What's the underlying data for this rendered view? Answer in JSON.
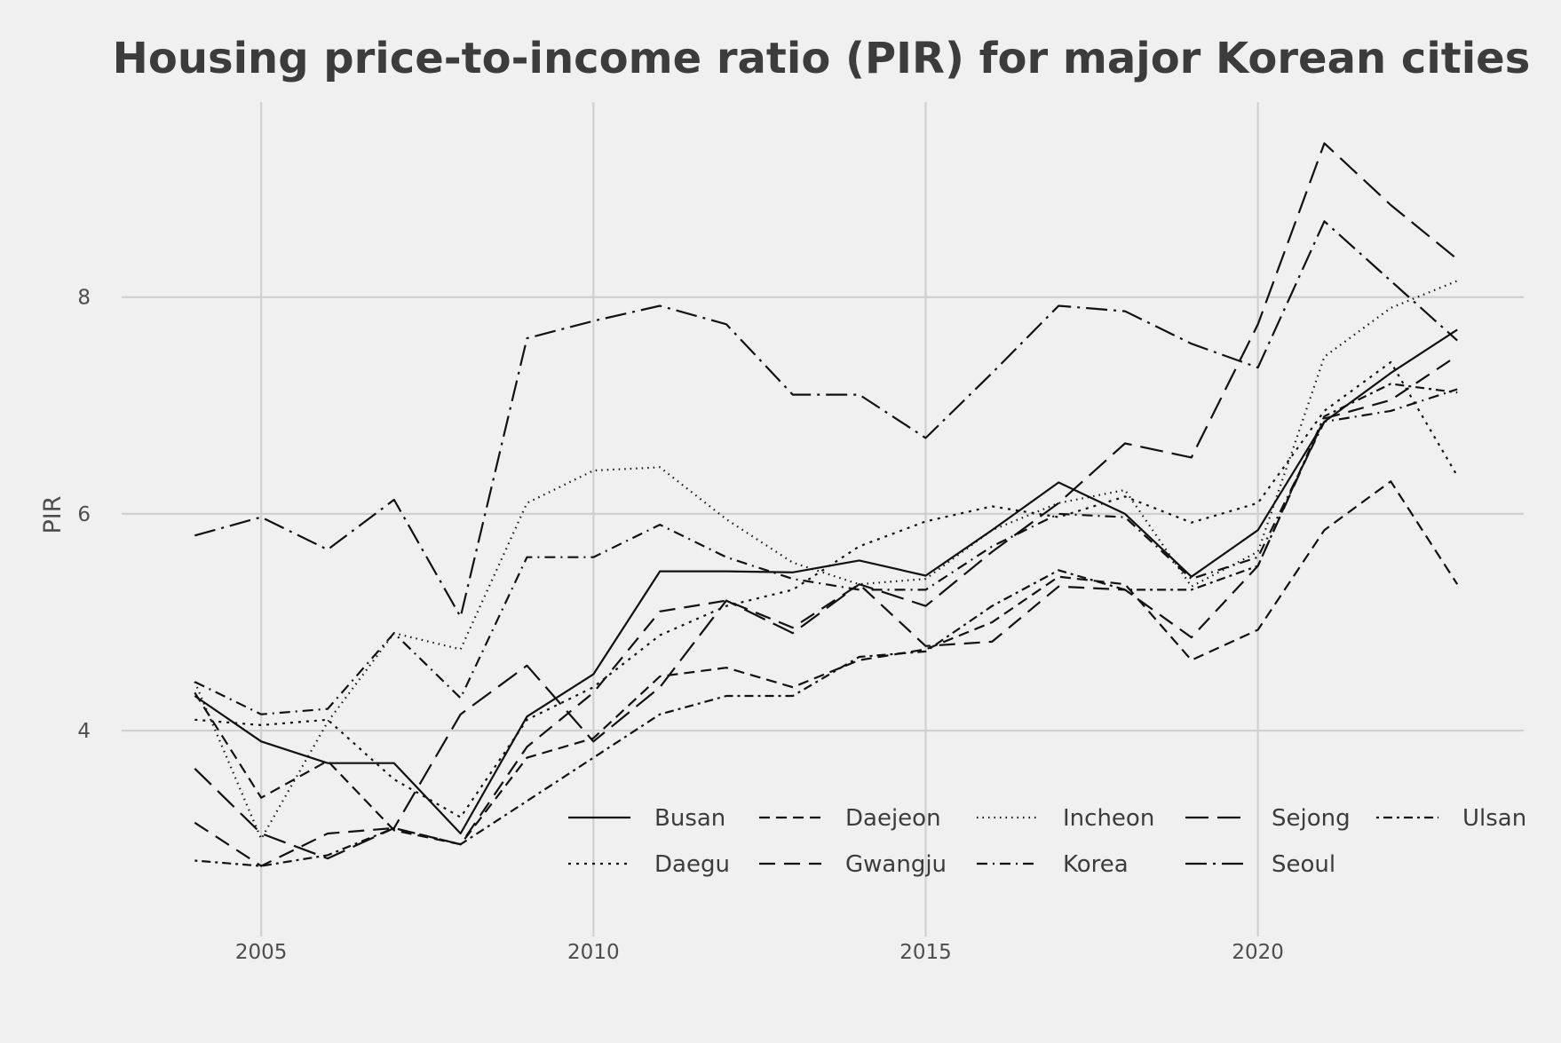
{
  "chart_data": {
    "type": "line",
    "title": "Housing price-to-income ratio (PIR) for major Korean cities",
    "xlabel": "",
    "ylabel": "PIR",
    "x": [
      2004,
      2005,
      2006,
      2007,
      2008,
      2009,
      2010,
      2011,
      2012,
      2013,
      2014,
      2015,
      2016,
      2017,
      2018,
      2019,
      2020,
      2021,
      2022,
      2023
    ],
    "xticks": [
      2005,
      2010,
      2015,
      2020
    ],
    "yticks": [
      4,
      6,
      8
    ],
    "xlim": [
      2002.9,
      2024.0
    ],
    "ylim": [
      2.1,
      9.8
    ],
    "grid": true,
    "legend_position": "bottom-right",
    "series": [
      {
        "name": "Busan",
        "dash": "solid",
        "values": [
          4.32,
          3.9,
          3.7,
          3.7,
          3.05,
          4.13,
          4.52,
          5.47,
          5.47,
          5.46,
          5.57,
          5.43,
          5.85,
          6.29,
          6.0,
          5.42,
          5.85,
          6.85,
          7.3,
          7.7
        ]
      },
      {
        "name": "Daegu",
        "dash": "dotted",
        "values": [
          4.1,
          4.05,
          4.1,
          3.55,
          3.2,
          4.1,
          4.4,
          4.88,
          5.15,
          5.3,
          5.7,
          5.93,
          6.07,
          5.97,
          6.16,
          5.92,
          6.1,
          6.95,
          7.4,
          6.35
        ]
      },
      {
        "name": "Daejeon",
        "dash": "dashed",
        "values": [
          4.35,
          3.38,
          3.72,
          3.08,
          2.95,
          3.75,
          3.93,
          4.5,
          4.58,
          4.4,
          4.65,
          4.75,
          5.0,
          5.42,
          5.35,
          4.65,
          4.93,
          5.85,
          6.3,
          5.35
        ]
      },
      {
        "name": "Gwangju",
        "dash": "dashed-med",
        "values": [
          3.15,
          2.75,
          3.05,
          3.1,
          2.95,
          3.85,
          4.35,
          5.1,
          5.2,
          4.95,
          5.35,
          4.78,
          4.82,
          5.33,
          5.3,
          4.86,
          5.52,
          6.88,
          7.05,
          7.46
        ]
      },
      {
        "name": "Incheon",
        "dash": "dotted-fine",
        "values": [
          4.45,
          3.0,
          4.08,
          4.9,
          4.75,
          6.1,
          6.4,
          6.43,
          5.95,
          5.55,
          5.35,
          5.4,
          5.85,
          6.1,
          6.22,
          5.33,
          5.65,
          7.45,
          7.9,
          8.15
        ]
      },
      {
        "name": "Korea",
        "dash": "dashdot",
        "values": [
          4.45,
          4.15,
          4.2,
          4.9,
          4.3,
          5.6,
          5.6,
          5.9,
          5.6,
          5.4,
          5.3,
          5.3,
          5.7,
          6.0,
          5.97,
          5.4,
          5.6,
          6.85,
          6.95,
          7.15
        ]
      },
      {
        "name": "Sejong",
        "dash": "longdash",
        "values": [
          3.65,
          3.05,
          2.82,
          3.1,
          4.15,
          4.6,
          3.9,
          4.4,
          5.2,
          4.9,
          5.35,
          5.15,
          5.65,
          6.1,
          6.65,
          6.52,
          7.75,
          9.42,
          8.85,
          8.35
        ]
      },
      {
        "name": "Seoul",
        "dash": "longdash-dot",
        "values": [
          5.8,
          5.97,
          5.67,
          6.13,
          5.05,
          7.62,
          7.78,
          7.92,
          7.75,
          7.1,
          7.1,
          6.7,
          7.3,
          7.92,
          7.87,
          7.57,
          7.35,
          8.7,
          8.15,
          7.6
        ]
      },
      {
        "name": "Ulsan",
        "dash": "dotdash-fine",
        "values": [
          2.8,
          2.75,
          2.85,
          3.1,
          2.95,
          3.35,
          3.75,
          4.15,
          4.32,
          4.32,
          4.68,
          4.73,
          5.15,
          5.48,
          5.3,
          5.3,
          5.52,
          6.9,
          7.2,
          7.12
        ]
      }
    ]
  }
}
